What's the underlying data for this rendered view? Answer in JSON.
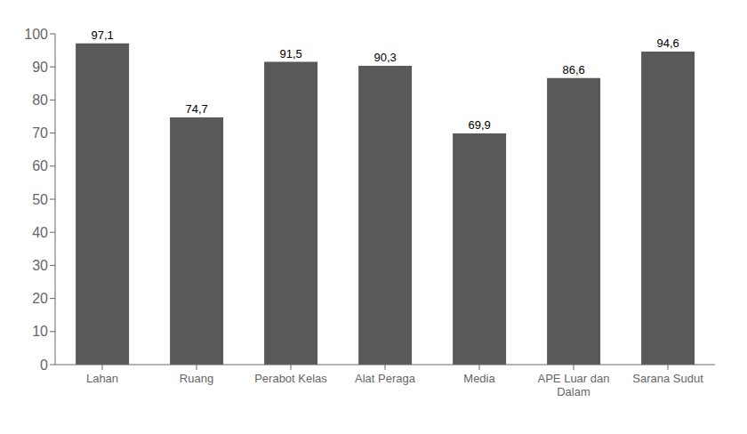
{
  "chart_data": {
    "type": "bar",
    "categories": [
      "Lahan",
      "Ruang",
      "Perabot Kelas",
      "Alat Peraga",
      "Media",
      "APE Luar dan\nDalam",
      "Sarana Sudut"
    ],
    "values": [
      97.1,
      74.7,
      91.5,
      90.3,
      69.9,
      86.6,
      94.6
    ],
    "value_labels": [
      "97,1",
      "74,7",
      "91,5",
      "90,3",
      "69,9",
      "86,6",
      "94,6"
    ],
    "color": "#595959",
    "ylim": [
      0,
      100
    ],
    "yticks": [
      0,
      10,
      20,
      30,
      40,
      50,
      60,
      70,
      80,
      90,
      100
    ],
    "grid": false,
    "data_labels": true
  }
}
